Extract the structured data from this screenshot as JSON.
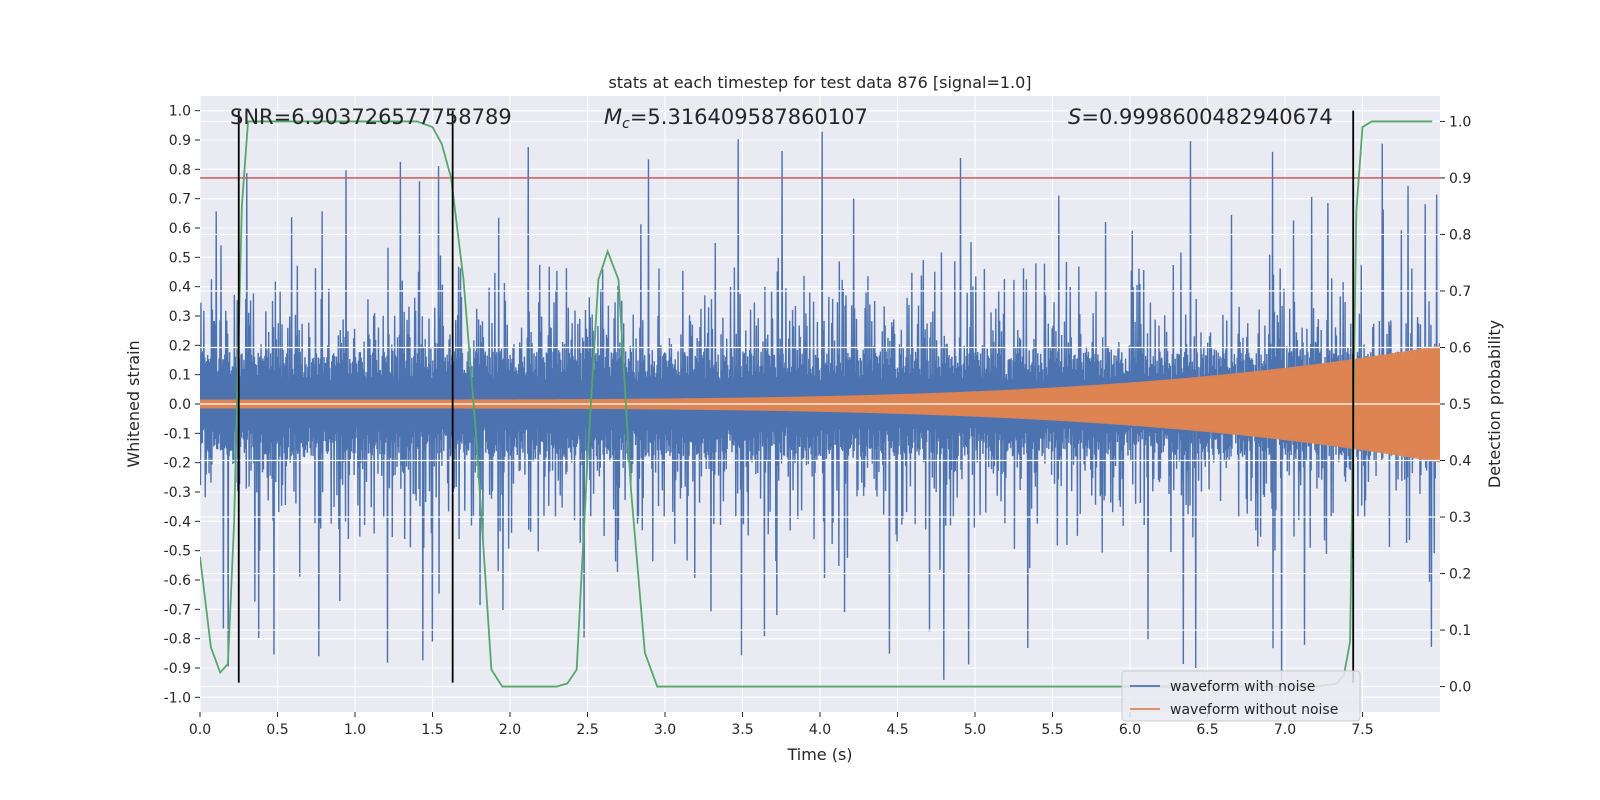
{
  "chart_data": {
    "type": "line",
    "title": "stats at each timestep for test data 876 [signal=1.0]",
    "xlabel": "Time (s)",
    "ylabel": "Whitened strain",
    "ylabel_right": "Detection probability",
    "xlim": [
      0.0,
      8.0
    ],
    "ylim": [
      -1.05,
      1.05
    ],
    "ylim_right": [
      -0.045,
      1.045
    ],
    "x_ticks": [
      "0.0",
      "0.5",
      "1.0",
      "1.5",
      "2.0",
      "2.5",
      "3.0",
      "3.5",
      "4.0",
      "4.5",
      "5.0",
      "5.5",
      "6.0",
      "6.5",
      "7.0",
      "7.5"
    ],
    "y_ticks": [
      "-1.0",
      "-0.9",
      "-0.8",
      "-0.7",
      "-0.6",
      "-0.5",
      "-0.4",
      "-0.3",
      "-0.2",
      "-0.1",
      "0.0",
      "0.1",
      "0.2",
      "0.3",
      "0.4",
      "0.5",
      "0.6",
      "0.7",
      "0.8",
      "0.9",
      "1.0"
    ],
    "y_ticks_right": [
      "0.0",
      "0.1",
      "0.2",
      "0.3",
      "0.4",
      "0.5",
      "0.6",
      "0.7",
      "0.8",
      "0.9",
      "1.0"
    ],
    "grid": true,
    "legend_position": "lower-right",
    "annotations": {
      "snr": "SNR=6.903726577758789",
      "mc_symbol": "M",
      "mc_sub": "c",
      "mc_value": "=5.316409587860107",
      "s_symbol": "S",
      "s_value": "=0.9998600482940674"
    },
    "colors": {
      "noise": "#4c72b0",
      "clean": "#dd8452",
      "probability": "#55a868",
      "threshold": "#c44e52",
      "markers": "#000000",
      "plot_bg": "#eaeaf2",
      "grid": "#ffffff"
    },
    "series": [
      {
        "name": "waveform with noise",
        "display": "dense-noise",
        "envelope_abs": 0.45,
        "peak_max": 1.0,
        "peak_min": -0.95
      },
      {
        "name": "waveform without noise",
        "display": "chirp",
        "amplitude_start": 0.015,
        "amplitude_end": 0.2
      },
      {
        "axis": "right",
        "display": "line",
        "x": [
          0.0,
          0.07,
          0.13,
          0.18,
          0.22,
          0.27,
          0.31,
          0.4,
          0.6,
          1.0,
          1.4,
          1.5,
          1.56,
          1.62,
          1.7,
          1.78,
          1.88,
          1.95,
          2.1,
          2.3,
          2.37,
          2.43,
          2.5,
          2.57,
          2.63,
          2.7,
          2.78,
          2.87,
          2.95,
          3.2,
          7.2,
          7.33,
          7.38,
          7.42,
          7.46,
          7.5,
          7.56,
          7.7,
          7.95
        ],
        "y": [
          0.23,
          0.07,
          0.025,
          0.04,
          0.29,
          0.85,
          1.0,
          1.0,
          1.0,
          1.0,
          1.0,
          0.99,
          0.96,
          0.9,
          0.72,
          0.45,
          0.03,
          0.0,
          0.0,
          0.0,
          0.0055,
          0.03,
          0.4,
          0.72,
          0.77,
          0.72,
          0.35,
          0.06,
          0.0,
          0.0,
          0.0,
          0.005,
          0.02,
          0.08,
          0.84,
          0.99,
          1.0,
          1.0,
          1.0
        ]
      }
    ],
    "threshold_right": 0.9,
    "marker_lines_x": [
      0.25,
      1.63,
      7.44
    ]
  }
}
